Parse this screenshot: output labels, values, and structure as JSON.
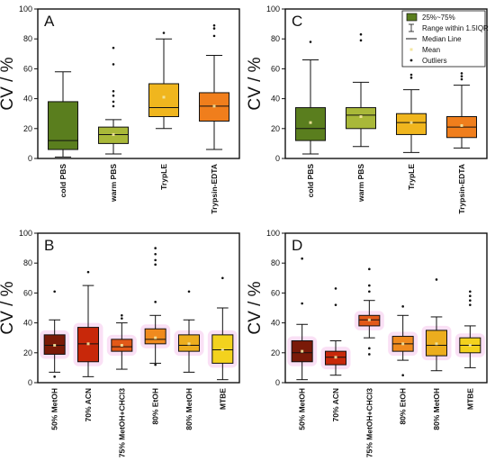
{
  "chart_data": [
    {
      "type": "box",
      "panel_label": "A",
      "ylabel": "CV / %",
      "ylim": [
        0,
        100
      ],
      "yticks": [
        0,
        20,
        40,
        60,
        80,
        100
      ],
      "categories": [
        "cold PBS",
        "warm PBS",
        "TrypLE",
        "Trypsin-EDTA"
      ],
      "boxes": [
        {
          "q1": 6,
          "median": 12,
          "q3": 38,
          "whisker_low": 1,
          "whisker_high": 58,
          "mean": null,
          "outliers": [],
          "color": "#5a7e1e",
          "glow": false
        },
        {
          "q1": 10,
          "median": 16,
          "q3": 21,
          "whisker_low": 3,
          "whisker_high": 26,
          "mean": 16,
          "outliers": [
            35,
            38,
            42,
            45,
            63,
            74
          ],
          "color": "#a9b839",
          "glow": false
        },
        {
          "q1": 28,
          "median": 34,
          "q3": 50,
          "whisker_low": 20,
          "whisker_high": 80,
          "mean": 41,
          "outliers": [
            84
          ],
          "color": "#f0b61e",
          "glow": false
        },
        {
          "q1": 25,
          "median": 35,
          "q3": 44,
          "whisker_low": 6,
          "whisker_high": 69,
          "mean": 35,
          "outliers": [
            82,
            87,
            89
          ],
          "color": "#f07e1c",
          "glow": false
        }
      ]
    },
    {
      "type": "box",
      "panel_label": "C",
      "ylabel": "CV / %",
      "ylim": [
        0,
        100
      ],
      "yticks": [
        0,
        20,
        40,
        60,
        80,
        100
      ],
      "categories": [
        "cold PBS",
        "warm PBS",
        "TrypLE",
        "Trypsin-EDTA"
      ],
      "boxes": [
        {
          "q1": 12,
          "median": 20,
          "q3": 34,
          "whisker_low": 3,
          "whisker_high": 66,
          "mean": 24,
          "outliers": [
            78
          ],
          "color": "#5a7e1e",
          "glow": false
        },
        {
          "q1": 20,
          "median": 29,
          "q3": 34,
          "whisker_low": 8,
          "whisker_high": 51,
          "mean": 28,
          "outliers": [
            79,
            83
          ],
          "color": "#a9b839",
          "glow": false
        },
        {
          "q1": 16,
          "median": 24,
          "q3": 30,
          "whisker_low": 4,
          "whisker_high": 46,
          "mean": 24,
          "outliers": [
            54,
            56
          ],
          "color": "#f0b61e",
          "glow": false
        },
        {
          "q1": 14,
          "median": 21,
          "q3": 28,
          "whisker_low": 7,
          "whisker_high": 49,
          "mean": 22,
          "outliers": [
            53,
            55,
            57
          ],
          "color": "#f07e1c",
          "glow": false
        }
      ],
      "legend": {
        "position": "top-right",
        "items": [
          "25%~75%",
          "Range within 1.5IQR",
          "Median Line",
          "Mean",
          "Outliers"
        ]
      }
    },
    {
      "type": "box",
      "panel_label": "B",
      "ylabel": "CV / %",
      "ylim": [
        0,
        100
      ],
      "yticks": [
        0,
        20,
        40,
        60,
        80,
        100
      ],
      "categories": [
        "50% MetOH",
        "70% ACN",
        "75% MetOH+CHCl3",
        "80% EtOH",
        "80% MetOH",
        "MTBE"
      ],
      "boxes": [
        {
          "q1": 19,
          "median": 25,
          "q3": 32,
          "whisker_low": 7,
          "whisker_high": 42,
          "mean": 25,
          "outliers": [
            4,
            61
          ],
          "color": "#7a1a08",
          "glow": true
        },
        {
          "q1": 14,
          "median": 26,
          "q3": 37,
          "whisker_low": 4,
          "whisker_high": 65,
          "mean": 26,
          "outliers": [
            74
          ],
          "color": "#c8280a",
          "glow": true
        },
        {
          "q1": 21,
          "median": 24,
          "q3": 29,
          "whisker_low": 9,
          "whisker_high": 40,
          "mean": 25,
          "outliers": [
            43,
            45
          ],
          "color": "#e25918",
          "glow": true
        },
        {
          "q1": 26,
          "median": 29,
          "q3": 36,
          "whisker_low": 13,
          "whisker_high": 45,
          "mean": 30,
          "outliers": [
            12,
            54,
            79,
            82,
            86,
            90
          ],
          "color": "#f08a1e",
          "glow": true
        },
        {
          "q1": 21,
          "median": 25,
          "q3": 32,
          "whisker_low": 7,
          "whisker_high": 42,
          "mean": 26,
          "outliers": [
            61
          ],
          "color": "#ecad1e",
          "glow": true
        },
        {
          "q1": 13,
          "median": 22,
          "q3": 32,
          "whisker_low": 2,
          "whisker_high": 50,
          "mean": 22,
          "outliers": [
            70
          ],
          "color": "#f3d21e",
          "glow": true
        }
      ]
    },
    {
      "type": "box",
      "panel_label": "D",
      "ylabel": "CV / %",
      "ylim": [
        0,
        100
      ],
      "yticks": [
        0,
        20,
        40,
        60,
        80,
        100
      ],
      "categories": [
        "50% MetOH",
        "70% ACN",
        "75% MetOH+CHCl3",
        "80% EtOH",
        "80% MetOH",
        "MTBE"
      ],
      "boxes": [
        {
          "q1": 14,
          "median": 20,
          "q3": 28,
          "whisker_low": 2,
          "whisker_high": 39,
          "mean": 21,
          "outliers": [
            53,
            83
          ],
          "color": "#7a1a08",
          "glow": true
        },
        {
          "q1": 12,
          "median": 17,
          "q3": 21,
          "whisker_low": 5,
          "whisker_high": 28,
          "mean": 17,
          "outliers": [
            52,
            63
          ],
          "color": "#c8280a",
          "glow": true
        },
        {
          "q1": 38,
          "median": 42,
          "q3": 45,
          "whisker_low": 30,
          "whisker_high": 55,
          "mean": 42,
          "outliers": [
            19,
            23,
            61,
            65,
            76
          ],
          "color": "#e25918",
          "glow": true
        },
        {
          "q1": 21,
          "median": 26,
          "q3": 31,
          "whisker_low": 15,
          "whisker_high": 45,
          "mean": 26,
          "outliers": [
            5,
            51
          ],
          "color": "#f08a1e",
          "glow": true
        },
        {
          "q1": 18,
          "median": 25,
          "q3": 35,
          "whisker_low": 8,
          "whisker_high": 44,
          "mean": 26,
          "outliers": [
            69
          ],
          "color": "#ecad1e",
          "glow": true
        },
        {
          "q1": 20,
          "median": 25,
          "q3": 30,
          "whisker_low": 10,
          "whisker_high": 38,
          "mean": 25,
          "outliers": [
            52,
            55,
            58,
            61
          ],
          "color": "#f3d21e",
          "glow": true
        }
      ]
    }
  ],
  "colors": {
    "axis": "#111111",
    "outlier": "#111111",
    "mean_marker": "#f3e6a0",
    "glow": "#f6c6ec",
    "legend_swatch": "#5a7e1e"
  }
}
